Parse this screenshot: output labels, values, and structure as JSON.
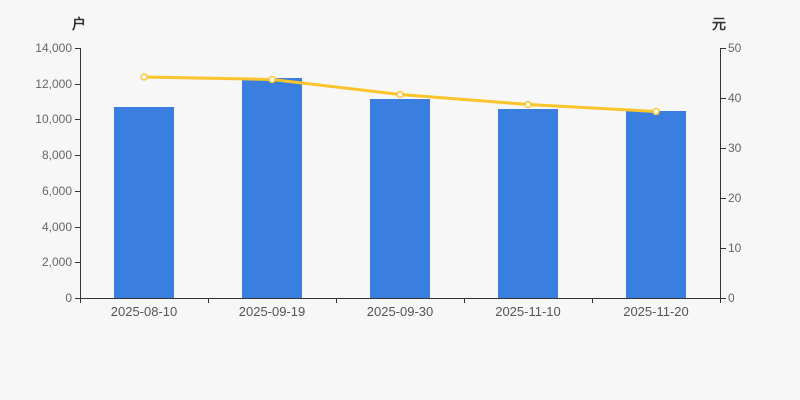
{
  "chart_data": {
    "type": "bar",
    "categories": [
      "2025-08-10",
      "2025-09-19",
      "2025-09-30",
      "2025-11-10",
      "2025-11-20"
    ],
    "series": [
      {
        "role": "bar",
        "axis": "left",
        "color": "#3a7ee0",
        "values": [
          10700,
          12300,
          11150,
          10600,
          10500
        ]
      },
      {
        "role": "line",
        "axis": "right",
        "color": "#fac42a",
        "marker_fill": "#ffffff",
        "values": [
          44.2,
          43.7,
          40.7,
          38.7,
          37.3
        ]
      }
    ],
    "left_axis": {
      "title": "户",
      "min": 0,
      "max": 14000,
      "step": 2000,
      "tick_labels": [
        "0",
        "2,000",
        "4,000",
        "6,000",
        "8,000",
        "10,000",
        "12,000",
        "14,000"
      ]
    },
    "right_axis": {
      "title": "元",
      "min": 0,
      "max": 50,
      "step": 10,
      "tick_labels": [
        "0",
        "10",
        "20",
        "30",
        "40",
        "50"
      ]
    },
    "grid": false,
    "legend": false,
    "colors": {
      "background": "#f7f7f7",
      "axis": "#333333",
      "tick_label": "#666666",
      "x_label": "#555555"
    }
  }
}
